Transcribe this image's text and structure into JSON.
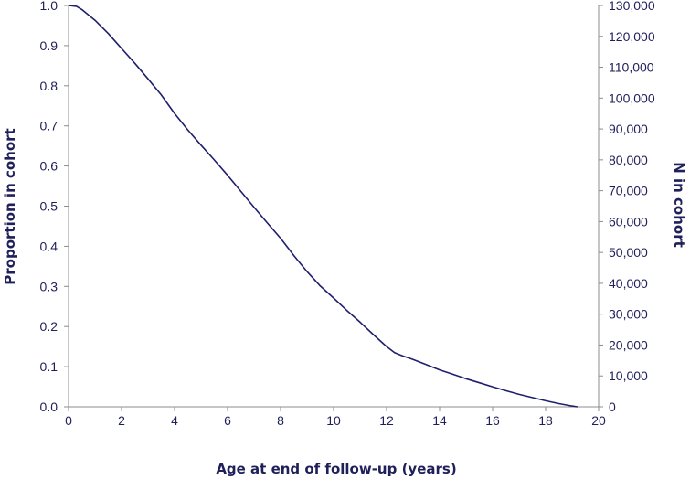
{
  "chart_data": {
    "type": "line",
    "title": "",
    "xlabel": "Age at end of follow-up (years)",
    "ylabel": "Proportion in cohort",
    "y2label": "N in cohort",
    "xlim": [
      0,
      20
    ],
    "ylim": [
      0,
      1
    ],
    "y2lim": [
      0,
      130000
    ],
    "x_ticks": [
      "0",
      "2",
      "4",
      "6",
      "8",
      "10",
      "12",
      "14",
      "16",
      "18",
      "20"
    ],
    "y_ticks": [
      "0.0",
      "0.1",
      "0.2",
      "0.3",
      "0.4",
      "0.5",
      "0.6",
      "0.7",
      "0.8",
      "0.9",
      "1.0"
    ],
    "y2_ticks": [
      "0",
      "10,000",
      "20,000",
      "30,000",
      "40,000",
      "50,000",
      "60,000",
      "70,000",
      "80,000",
      "90,000",
      "100,000",
      "110,000",
      "120,000",
      "130,000"
    ],
    "grid": false,
    "line_color": "#1f1f6e",
    "series": [
      {
        "x": [
          0,
          0.3,
          0.5,
          1,
          1.5,
          2,
          2.5,
          3,
          3.5,
          4,
          4.5,
          5,
          5.5,
          6,
          6.5,
          7,
          7.5,
          8,
          8.2,
          8.5,
          9,
          9.5,
          10,
          10.5,
          11,
          11.5,
          12,
          12.3,
          12.6,
          13,
          13.5,
          14,
          14.5,
          15,
          15.5,
          16,
          16.5,
          17,
          17.5,
          18,
          18.5,
          19,
          19.2
        ],
        "y": [
          1.0,
          0.998,
          0.99,
          0.963,
          0.93,
          0.893,
          0.856,
          0.817,
          0.777,
          0.731,
          0.69,
          0.652,
          0.615,
          0.577,
          0.537,
          0.497,
          0.458,
          0.42,
          0.403,
          0.377,
          0.337,
          0.301,
          0.271,
          0.24,
          0.211,
          0.18,
          0.15,
          0.135,
          0.127,
          0.118,
          0.105,
          0.092,
          0.081,
          0.07,
          0.06,
          0.05,
          0.04,
          0.031,
          0.023,
          0.015,
          0.008,
          0.002,
          0.0
        ]
      }
    ]
  }
}
